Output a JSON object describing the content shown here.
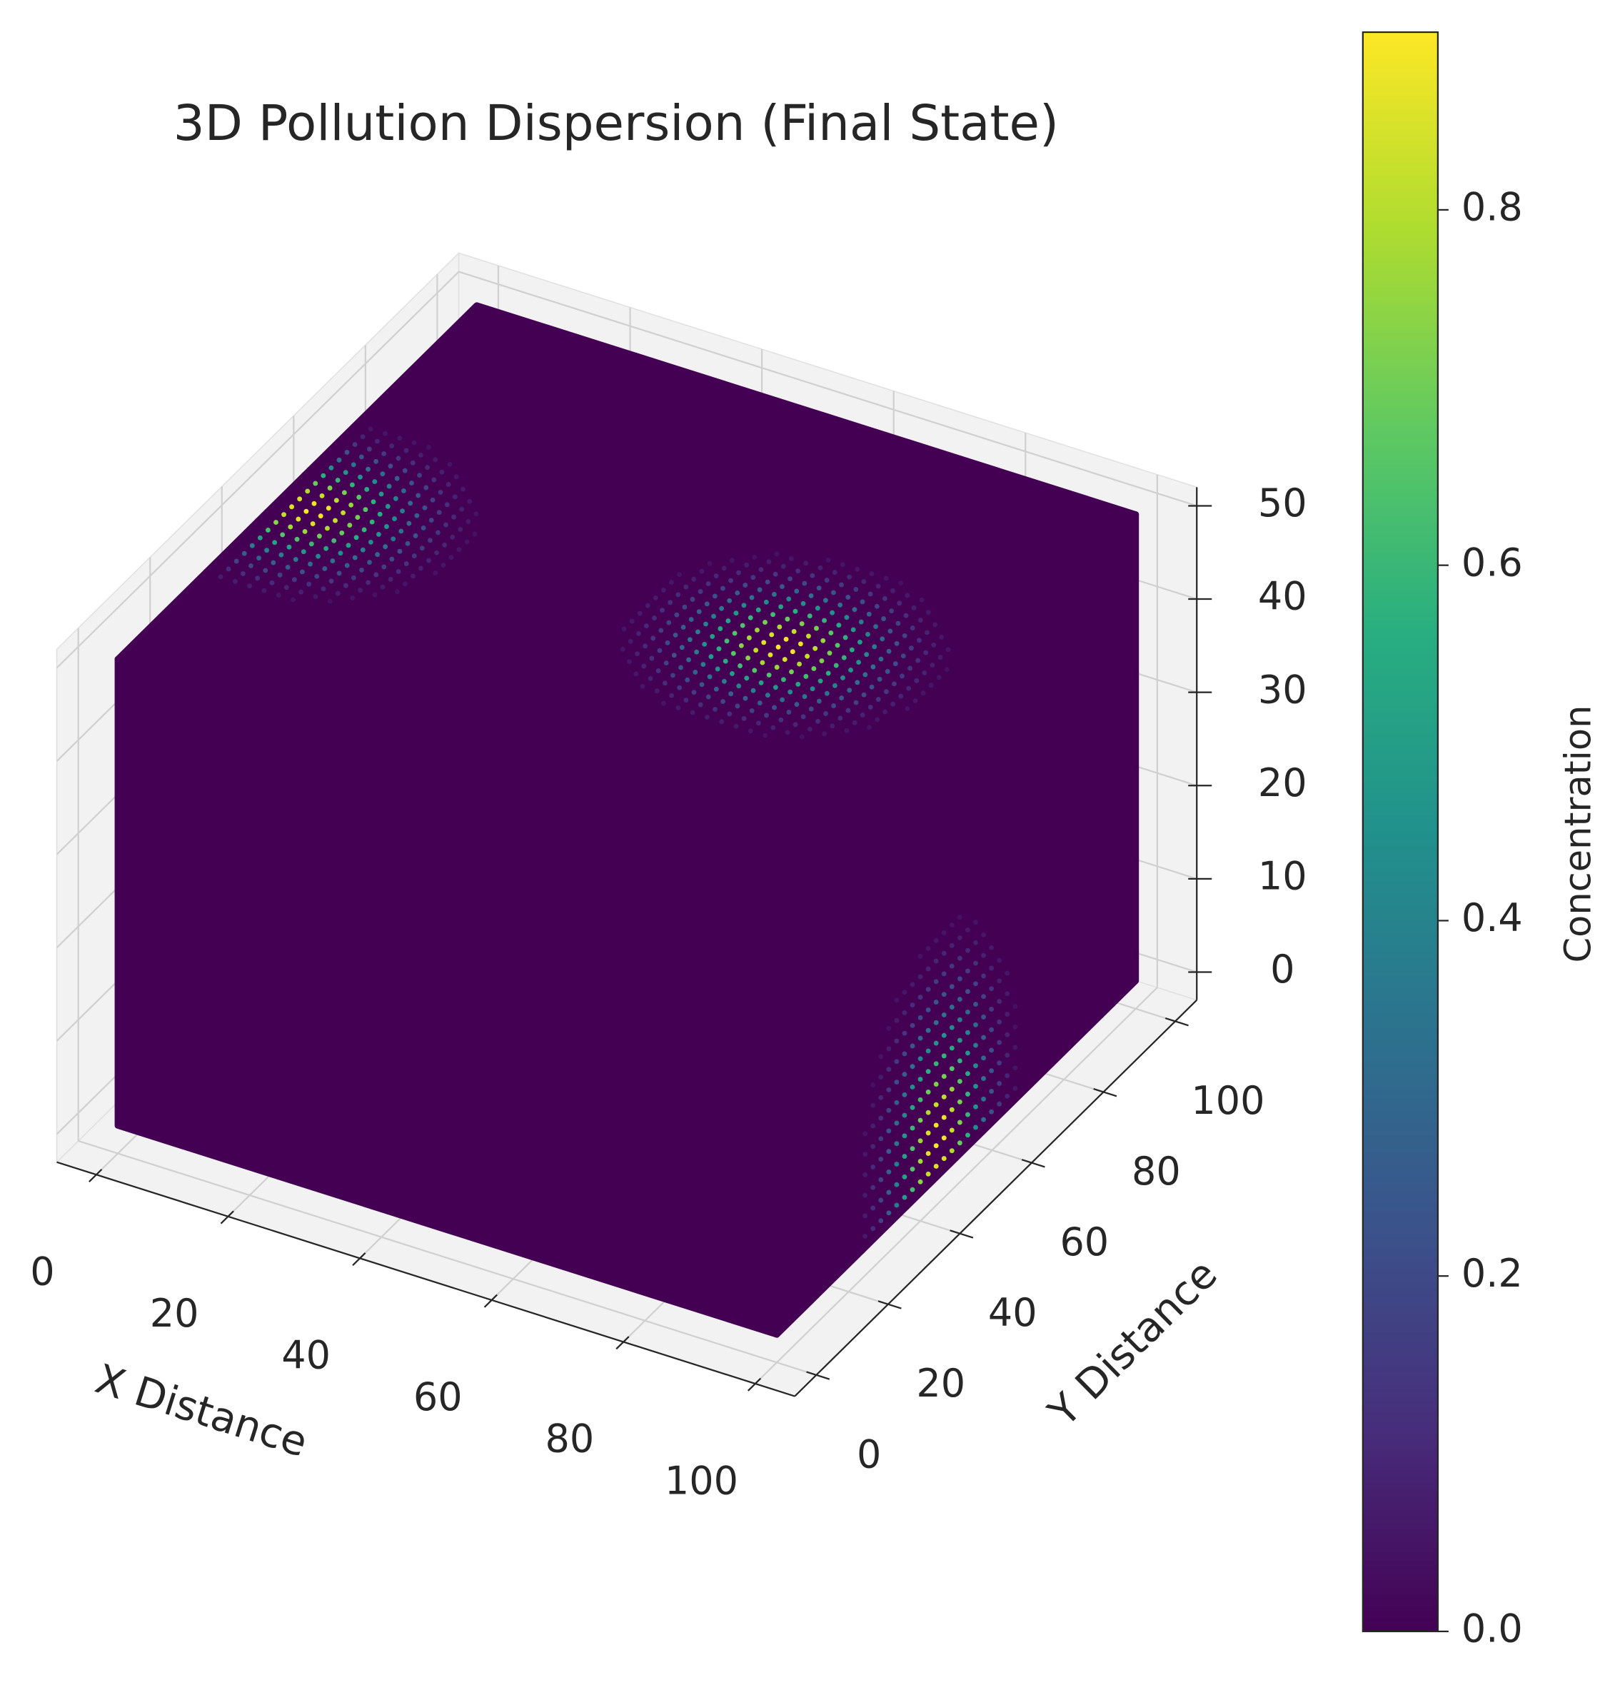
{
  "chart_data": {
    "type": "scatter3d",
    "title": "3D Pollution Dispersion (Final State)",
    "x_label": "X Distance",
    "y_label": "Y Distance",
    "colorbar_label": "Concentration",
    "x": [
      5,
      75,
      100
    ],
    "y": [
      45,
      48,
      45
    ],
    "z": [
      50,
      50,
      4
    ],
    "values": [
      0.9,
      0.9,
      0.9
    ],
    "xlim": [
      -6,
      106
    ],
    "ylim": [
      -6,
      106
    ],
    "zlim": [
      -3,
      52
    ],
    "xticks": [
      0,
      20,
      40,
      60,
      80,
      100
    ],
    "yticks": [
      0,
      20,
      40,
      60,
      80,
      100
    ],
    "zticks": [
      0,
      10,
      20,
      30,
      40,
      50
    ],
    "clim": [
      0,
      0.9
    ],
    "cticks": [
      {
        "value": 0,
        "label": "0.0"
      },
      {
        "value": 0.2,
        "label": "0.2"
      },
      {
        "value": 0.4,
        "label": "0.4"
      },
      {
        "value": 0.6,
        "label": "0.6"
      },
      {
        "value": 0.8,
        "label": "0.8"
      }
    ],
    "colormap": [
      "#440154",
      "#472d7b",
      "#3b528b",
      "#2c728e",
      "#21918c",
      "#28ae80",
      "#5ec962",
      "#addc30",
      "#fde725"
    ],
    "pane_color": "#f2f2f2",
    "grid": true
  }
}
